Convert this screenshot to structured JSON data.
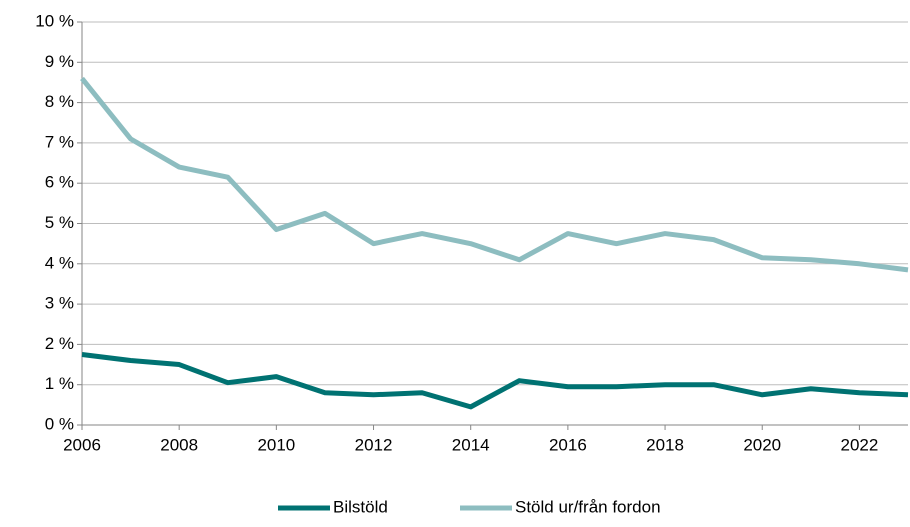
{
  "chart_data": {
    "type": "line",
    "x": [
      2006,
      2007,
      2008,
      2009,
      2010,
      2011,
      2012,
      2013,
      2014,
      2015,
      2016,
      2017,
      2018,
      2019,
      2020,
      2021,
      2022,
      2023
    ],
    "series": [
      {
        "name": "Bilstöld",
        "color": "#007272",
        "values": [
          1.75,
          1.6,
          1.5,
          1.05,
          1.2,
          0.8,
          0.75,
          0.8,
          0.45,
          1.1,
          0.95,
          0.95,
          1.0,
          1.0,
          0.75,
          0.9,
          0.8,
          0.75
        ]
      },
      {
        "name": "Stöld ur/från fordon",
        "color": "#8dbdc0",
        "values": [
          8.6,
          7.1,
          6.4,
          6.15,
          4.85,
          5.25,
          4.5,
          4.75,
          4.5,
          4.1,
          4.75,
          4.5,
          4.75,
          4.6,
          4.15,
          4.1,
          4.0,
          3.85
        ]
      }
    ],
    "xlim": [
      2006,
      2023
    ],
    "xticks": [
      2006,
      2008,
      2010,
      2012,
      2014,
      2016,
      2018,
      2020,
      2022
    ],
    "ylim": [
      0,
      10
    ],
    "yticks": [
      {
        "value": 0,
        "label": "0 %"
      },
      {
        "value": 1,
        "label": "1 %"
      },
      {
        "value": 2,
        "label": "2 %"
      },
      {
        "value": 3,
        "label": "3 %"
      },
      {
        "value": 4,
        "label": "4 %"
      },
      {
        "value": 5,
        "label": "5 %"
      },
      {
        "value": 6,
        "label": "6 %"
      },
      {
        "value": 7,
        "label": "7 %"
      },
      {
        "value": 8,
        "label": "8 %"
      },
      {
        "value": 9,
        "label": "9 %"
      },
      {
        "value": 10,
        "label": "10 %"
      }
    ],
    "grid": true,
    "legend": "bottom"
  }
}
